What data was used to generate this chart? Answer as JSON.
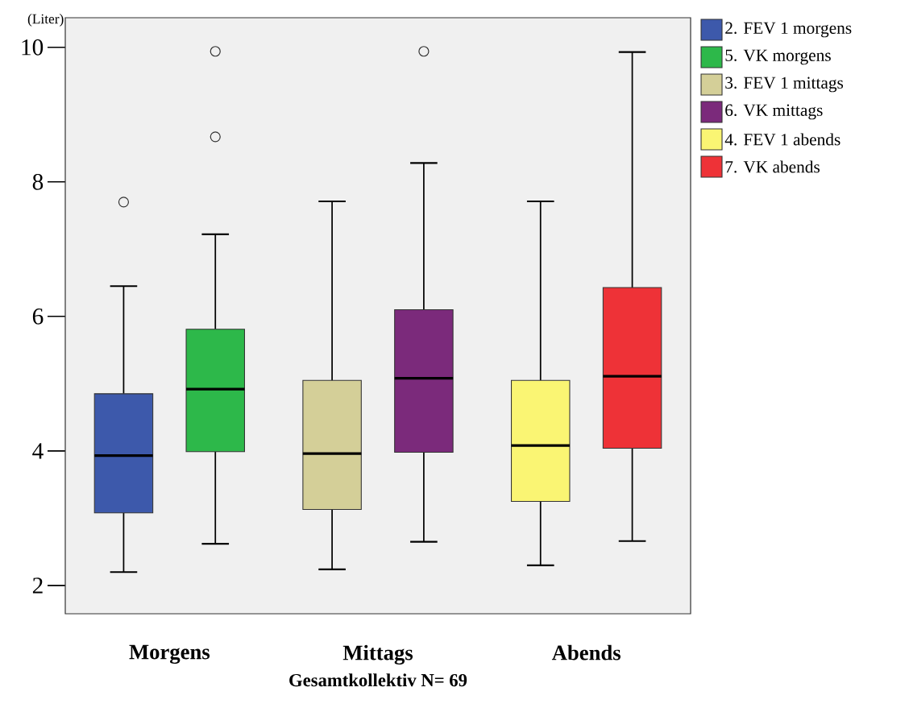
{
  "chart_data": {
    "type": "box",
    "xlabel": "Gesamtkollektiv N= 69",
    "ylabel": "(Liter)",
    "categories": [
      "Morgens",
      "Mittags",
      "Abends"
    ],
    "series": [
      {
        "name": "2. FEV 1 morgens",
        "color": "#3d59ab",
        "boxes": [
          {
            "low": 2.2,
            "q1": 3.08,
            "median": 3.93,
            "q3": 4.85,
            "high": 6.45,
            "outliers": [
              7.7
            ]
          },
          null,
          null
        ]
      },
      {
        "name": "5. VK morgens",
        "color": "#2db84a",
        "boxes": [
          {
            "low": 2.62,
            "q1": 3.99,
            "median": 4.92,
            "q3": 5.81,
            "high": 7.22,
            "outliers": [
              8.67,
              9.94
            ]
          },
          null,
          null
        ]
      },
      {
        "name": "3. FEV 1 mittags",
        "color": "#d4cf98",
        "boxes": [
          null,
          {
            "low": 2.24,
            "q1": 3.13,
            "median": 3.96,
            "q3": 5.05,
            "high": 7.71
          },
          null
        ]
      },
      {
        "name": "6. VK mittags",
        "color": "#7b2a7b",
        "boxes": [
          null,
          {
            "low": 2.65,
            "q1": 3.98,
            "median": 5.08,
            "q3": 6.1,
            "high": 8.28,
            "outliers": [
              9.94
            ]
          },
          null
        ]
      },
      {
        "name": "4. FEV 1 abends",
        "color": "#faf573",
        "boxes": [
          null,
          null,
          {
            "low": 2.3,
            "q1": 3.25,
            "median": 4.08,
            "q3": 5.05,
            "high": 7.71
          }
        ]
      },
      {
        "name": "7. VK abends",
        "color": "#ee3237",
        "boxes": [
          null,
          null,
          {
            "low": 2.66,
            "q1": 4.04,
            "median": 5.11,
            "q3": 6.43,
            "high": 9.93
          }
        ]
      }
    ],
    "ylim": [
      1.58,
      10.44
    ],
    "yticks": [
      2,
      4,
      6,
      8,
      10
    ],
    "legend": "top right"
  }
}
